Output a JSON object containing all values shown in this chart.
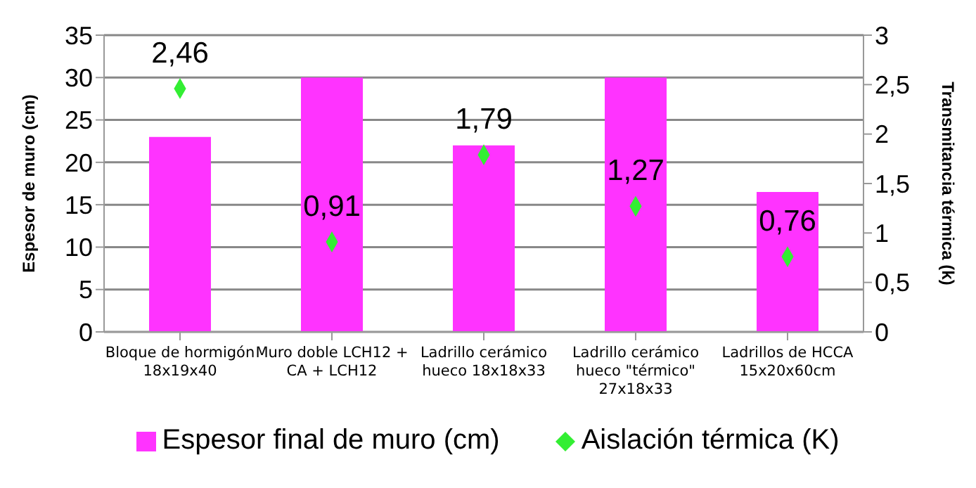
{
  "chart_data": {
    "type": "bar",
    "categories": [
      "Bloque de hormigón 18x19x40",
      "Muro doble LCH12 + CA + LCH12",
      "Ladrillo cerámico hueco 18x18x33",
      "Ladrillo cerámico hueco \"térmico\" 27x18x33",
      "Ladrillos de HCCA 15x20x60cm"
    ],
    "series": [
      {
        "name": "Espesor final de muro (cm)",
        "color": "#ff33ff",
        "values": [
          23,
          30,
          22,
          30,
          16.5
        ]
      },
      {
        "name": "Aislación térmica (K)",
        "type": "scatter",
        "axis": "y2",
        "marker": "diamond",
        "color": "#33ee33",
        "values": [
          2.46,
          0.91,
          1.79,
          1.27,
          0.76
        ],
        "value_labels": [
          "2,46",
          "0,91",
          "1,79",
          "1,27",
          "0,76"
        ]
      }
    ],
    "ylabel": "Espesor de muro (cm)",
    "y2label": "Transmitancia térmica (k)",
    "ylim": [
      0,
      35
    ],
    "yticks": [
      0,
      5,
      10,
      15,
      20,
      25,
      30,
      35
    ],
    "y2lim": [
      0,
      3
    ],
    "y2ticks": [
      0,
      {
        "value": 0.5,
        "label": "0,5"
      },
      1,
      {
        "value": 1.5,
        "label": "1,5"
      },
      2,
      {
        "value": 2.5,
        "label": "2,5"
      },
      3
    ],
    "grid": "y",
    "legend": "bottom"
  }
}
